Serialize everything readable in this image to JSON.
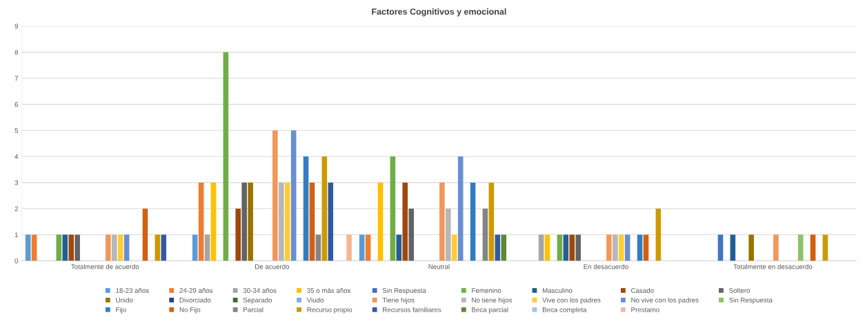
{
  "chart_data": {
    "type": "bar",
    "title": "Factores Cognitivos y emocional",
    "categories": [
      "Totalmente de acuerdo",
      "De acuerdo",
      "Neutral",
      "En desacuerdo",
      "Totalmente en desacuerdo"
    ],
    "ylim": [
      0,
      9
    ],
    "yticks": [
      0,
      1,
      2,
      3,
      4,
      5,
      6,
      7,
      8,
      9
    ],
    "grid": "y",
    "legend": "bottom",
    "series": [
      {
        "name": "18-23 años",
        "color": "#5b9bd5",
        "values": [
          1,
          1,
          1,
          0,
          0
        ]
      },
      {
        "name": "24-29 años",
        "color": "#ed7d31",
        "values": [
          1,
          3,
          1,
          0,
          0
        ]
      },
      {
        "name": "30-34 años",
        "color": "#a5a5a5",
        "values": [
          0,
          1,
          0,
          1,
          0
        ]
      },
      {
        "name": "35 o más años",
        "color": "#ffc000",
        "values": [
          0,
          3,
          3,
          1,
          0
        ]
      },
      {
        "name": "Sin Respuesta",
        "color": "#4472c4",
        "values": [
          0,
          0,
          0,
          0,
          1
        ]
      },
      {
        "name": "Femenino",
        "color": "#70ad47",
        "values": [
          1,
          8,
          4,
          1,
          0
        ]
      },
      {
        "name": "Masculino",
        "color": "#255e91",
        "values": [
          1,
          0,
          1,
          1,
          1
        ]
      },
      {
        "name": "Casado",
        "color": "#9e480e",
        "values": [
          1,
          2,
          3,
          1,
          0
        ]
      },
      {
        "name": "Soltero",
        "color": "#636363",
        "values": [
          1,
          3,
          2,
          1,
          0
        ]
      },
      {
        "name": "Unido",
        "color": "#997300",
        "values": [
          0,
          3,
          0,
          0,
          1
        ]
      },
      {
        "name": "Divorciado",
        "color": "#264478",
        "values": [
          0,
          0,
          0,
          0,
          0
        ]
      },
      {
        "name": "Separado",
        "color": "#43682b",
        "values": [
          0,
          0,
          0,
          0,
          0
        ]
      },
      {
        "name": "Viudo",
        "color": "#7cafdd",
        "values": [
          0,
          0,
          0,
          0,
          0
        ]
      },
      {
        "name": "Tiene hijos",
        "color": "#f1975a",
        "values": [
          1,
          5,
          3,
          1,
          1
        ]
      },
      {
        "name": "No tiene hijos",
        "color": "#b7b7b7",
        "values": [
          1,
          3,
          2,
          1,
          0
        ]
      },
      {
        "name": "Vive con los padres",
        "color": "#ffcd33",
        "values": [
          1,
          3,
          1,
          1,
          0
        ]
      },
      {
        "name": "No vive con los padres",
        "color": "#698ed0",
        "values": [
          1,
          5,
          4,
          1,
          0
        ]
      },
      {
        "name": "Sin Respuesta",
        "color": "#8cc168",
        "values": [
          0,
          0,
          0,
          0,
          1
        ]
      },
      {
        "name": "Fijo",
        "color": "#327dc2",
        "values": [
          0,
          4,
          3,
          1,
          0
        ]
      },
      {
        "name": "No Fijo",
        "color": "#d26012",
        "values": [
          2,
          3,
          0,
          1,
          1
        ]
      },
      {
        "name": "Parcial",
        "color": "#848484",
        "values": [
          0,
          1,
          2,
          0,
          0
        ]
      },
      {
        "name": "Recurso propio",
        "color": "#cc9a00",
        "values": [
          1,
          4,
          3,
          2,
          1
        ]
      },
      {
        "name": "Recursos familiares",
        "color": "#335aa1",
        "values": [
          1,
          3,
          1,
          0,
          0
        ]
      },
      {
        "name": "Beca parcial",
        "color": "#5a8a39",
        "values": [
          0,
          0,
          1,
          0,
          0
        ]
      },
      {
        "name": "Beca completa",
        "color": "#a3c4e7",
        "values": [
          0,
          0,
          0,
          0,
          0
        ]
      },
      {
        "name": "Prestamo",
        "color": "#f5b696",
        "values": [
          0,
          1,
          0,
          0,
          0
        ]
      }
    ]
  }
}
